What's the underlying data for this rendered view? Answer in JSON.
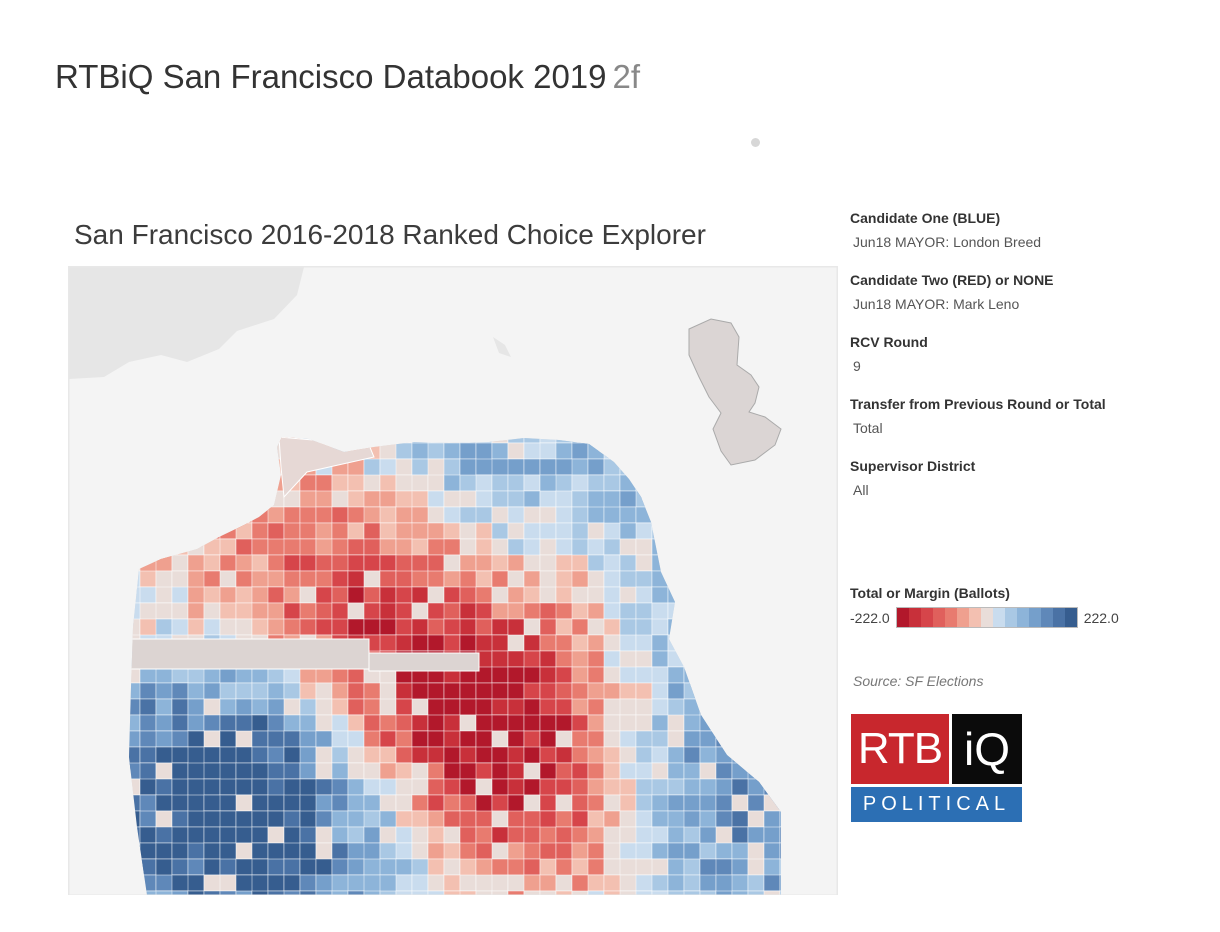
{
  "page": {
    "title": "RTBiQ San Francisco Databook 2019",
    "title_suffix": "2f"
  },
  "dashboard": {
    "title": "San Francisco 2016-2018 Ranked Choice Explorer"
  },
  "filters": [
    {
      "label": "Candidate One (BLUE)",
      "value": "Jun18 MAYOR: London Breed"
    },
    {
      "label": "Candidate Two (RED) or NONE",
      "value": "Jun18 MAYOR: Mark Leno"
    },
    {
      "label": "RCV Round",
      "value": "9"
    },
    {
      "label": "Transfer from Previous Round or Total",
      "value": "Total"
    },
    {
      "label": "Supervisor District",
      "value": "All"
    }
  ],
  "legend": {
    "label": "Total or Margin (Ballots)",
    "min": "-222.0",
    "max": "222.0",
    "colors": [
      "#b2182b",
      "#c8303a",
      "#d6454a",
      "#e0605c",
      "#e87b6f",
      "#efa08f",
      "#f3c0b1",
      "#e9ddd9",
      "#c9dcee",
      "#a9c8e4",
      "#8db4d9",
      "#759fcb",
      "#5f88b9",
      "#4a72a5",
      "#365d8f"
    ]
  },
  "source": "Source: SF Elections",
  "logo": {
    "left": "RTB",
    "right": "iQ",
    "bottom": "POLITICAL"
  }
}
